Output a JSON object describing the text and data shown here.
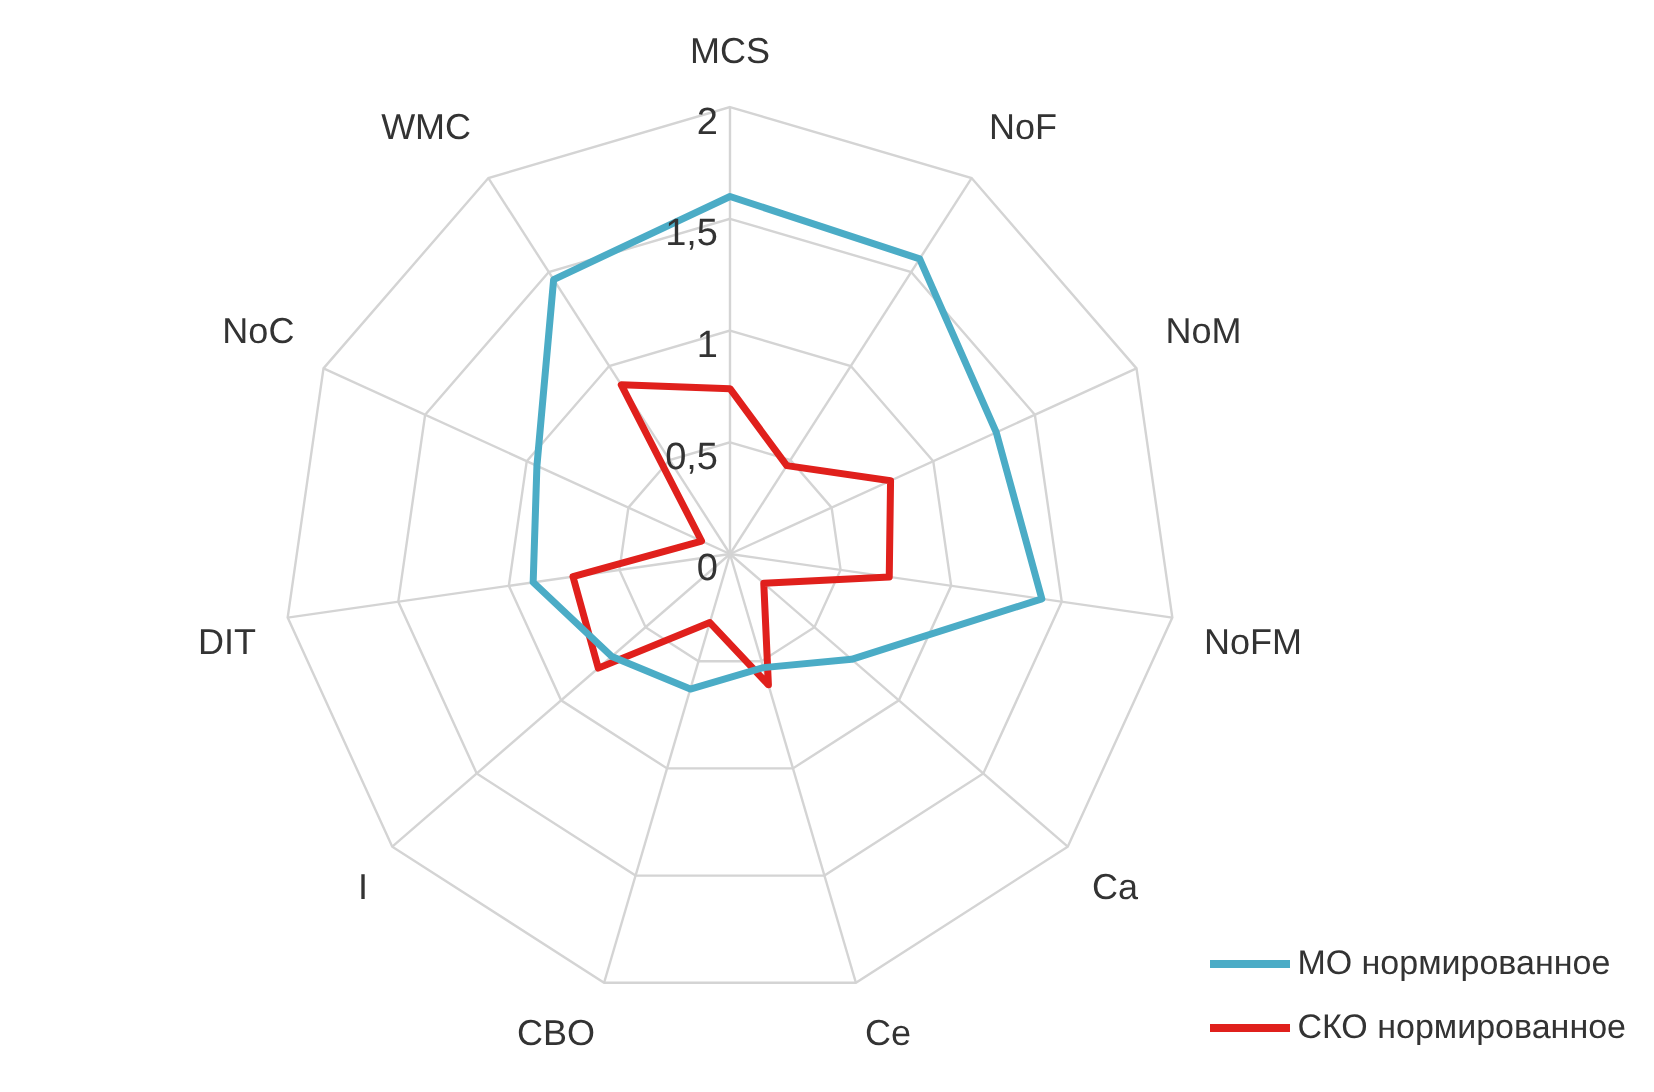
{
  "chart_data": {
    "type": "radar",
    "categories": [
      "MCS",
      "NoF",
      "NoM",
      "NoFM",
      "Ca",
      "Ce",
      "CBO",
      "I",
      "DIT",
      "NoC",
      "WMC"
    ],
    "series": [
      {
        "name": "МО нормированное",
        "color": "#4bacc6",
        "values": [
          1.6,
          1.57,
          1.31,
          1.41,
          0.72,
          0.53,
          0.63,
          0.7,
          0.89,
          0.95,
          1.46
        ]
      },
      {
        "name": "СКО нормированное",
        "color": "#e0201c",
        "values": [
          0.74,
          0.47,
          0.79,
          0.72,
          0.2,
          0.61,
          0.32,
          0.78,
          0.71,
          0.14,
          0.9
        ]
      }
    ],
    "ylim": [
      0,
      2
    ],
    "yticks": [
      0,
      {
        "value": 0.5,
        "label": "0,5"
      },
      1,
      {
        "value": 1.5,
        "label": "1,5"
      },
      2
    ],
    "grid": true,
    "legend": "bottom right",
    "marker": "none",
    "line_style": "solid"
  }
}
